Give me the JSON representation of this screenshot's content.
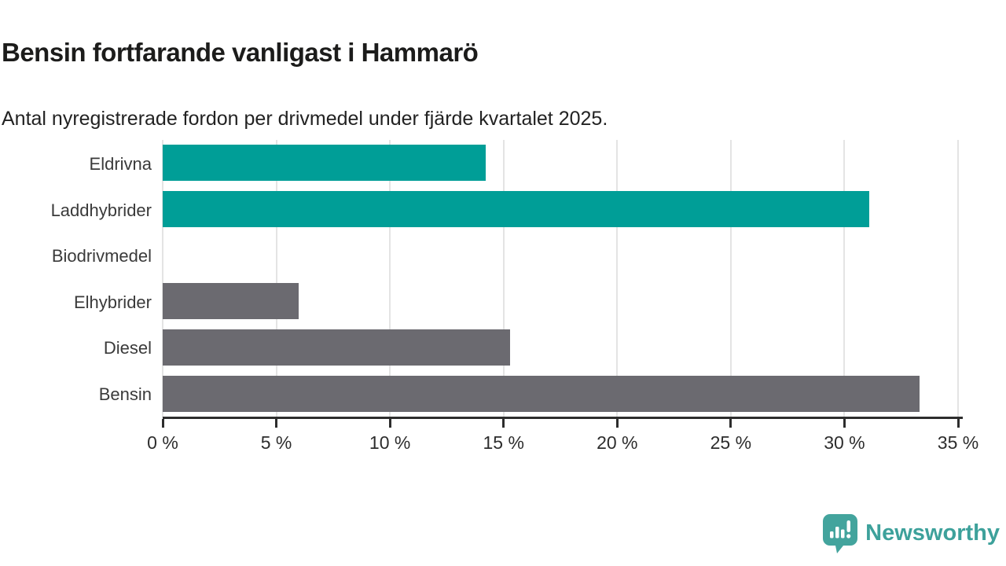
{
  "header": {
    "title": "Bensin fortfarande vanligast i Hammarö",
    "subtitle": "Antal nyregistrerade fordon per drivmedel under fjärde kvartalet 2025."
  },
  "chart_data": {
    "type": "bar",
    "orientation": "horizontal",
    "title": "Bensin fortfarande vanligast i Hammarö",
    "subtitle": "Antal nyregistrerade fordon per drivmedel under fjärde kvartalet 2025.",
    "categories": [
      "Eldrivna",
      "Laddhybrider",
      "Biodrivmedel",
      "Elhybrider",
      "Diesel",
      "Bensin"
    ],
    "values": [
      14.2,
      31.1,
      0,
      6.0,
      15.3,
      33.3
    ],
    "unit": "%",
    "bar_colors": [
      "#009e97",
      "#009e97",
      "#6b6a70",
      "#6b6a70",
      "#6b6a70",
      "#6b6a70"
    ],
    "xlabel": "",
    "ylabel": "",
    "xlim": [
      0,
      35
    ],
    "x_ticks": [
      0,
      5,
      10,
      15,
      20,
      25,
      30,
      35
    ],
    "x_tick_labels": [
      "0 %",
      "5 %",
      "10 %",
      "15 %",
      "20 %",
      "25 %",
      "30 %",
      "35 %"
    ],
    "grid": true,
    "legend": false
  },
  "footer": {
    "brand": "Newsworthy",
    "logo_icon": "bar-chart-speech-bubble-icon"
  },
  "colors": {
    "teal": "#009e97",
    "gray": "#6b6a70",
    "brand_teal": "#43a49d",
    "grid": "#e4e4e4",
    "axis": "#2d2d2d",
    "title_text": "#1c1c1b",
    "label_text": "#3a3a3a"
  }
}
